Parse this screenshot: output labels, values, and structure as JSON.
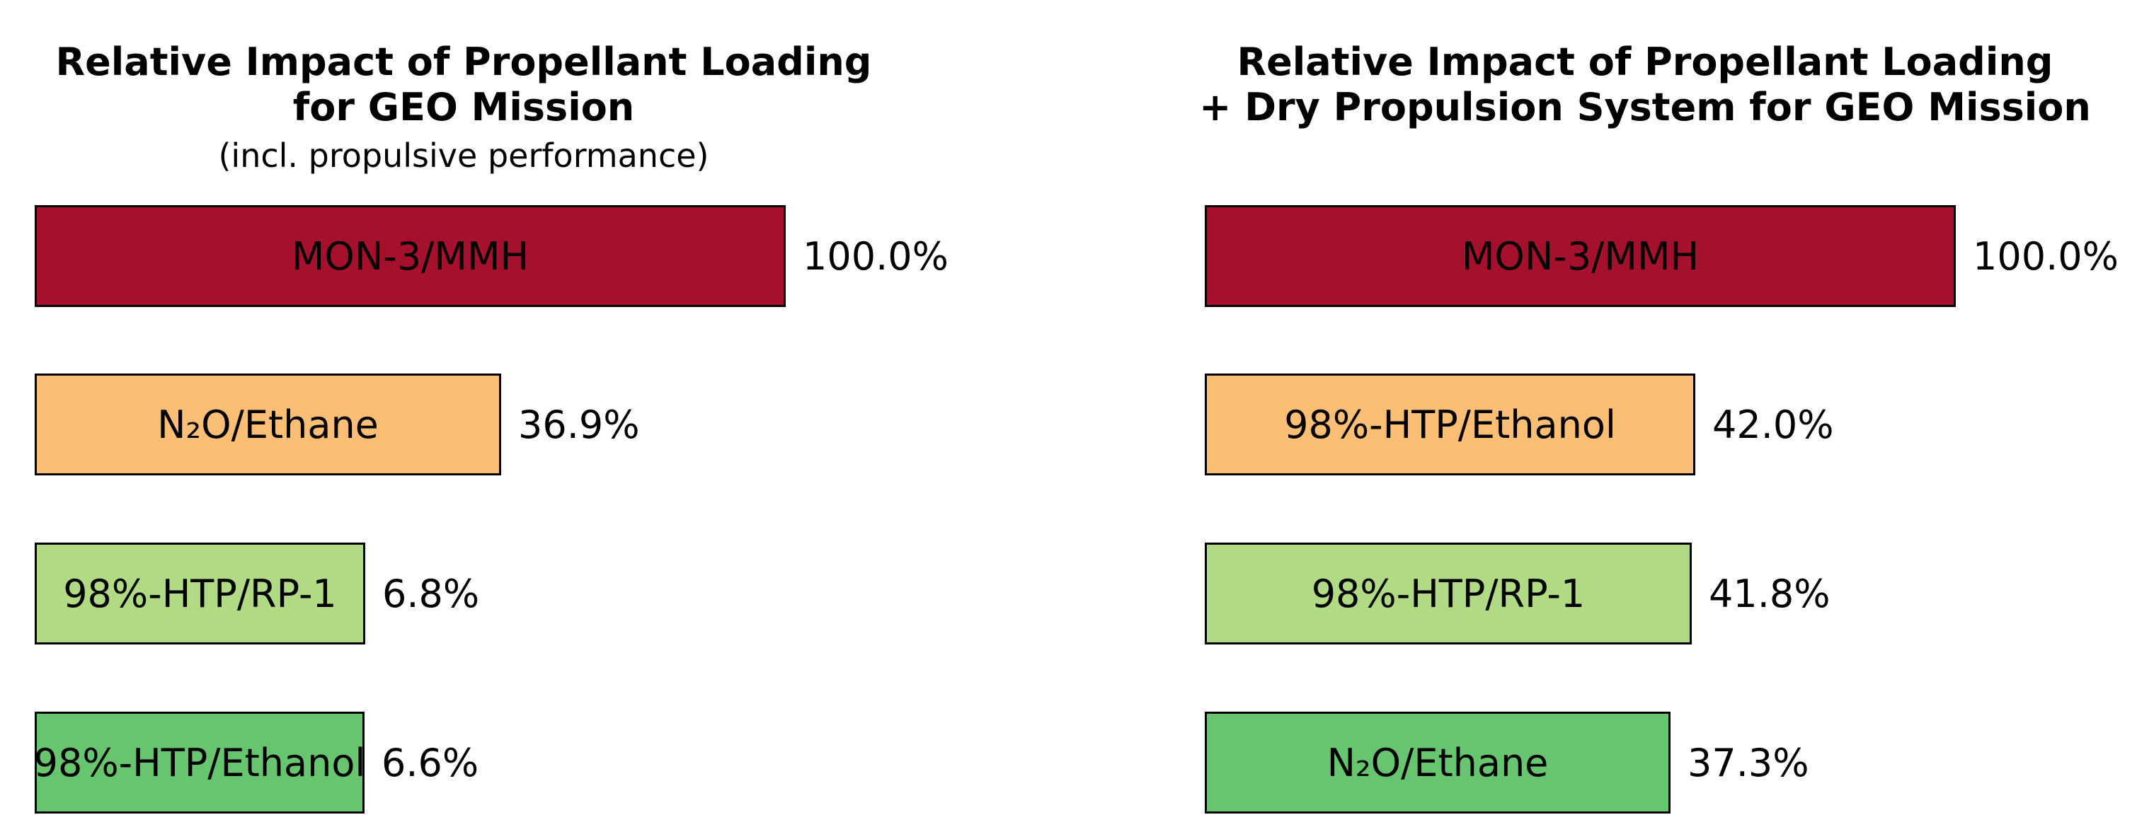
{
  "figure": {
    "background": "#ffffff",
    "text_color": "#000000",
    "bar_border_color": "#000000"
  },
  "chart_data": [
    {
      "type": "bar",
      "orientation": "horizontal",
      "title": "Relative Impact of Propellant Loading for GEO Mission",
      "title_lines": [
        "Relative Impact of Propellant Loading",
        "for GEO Mission"
      ],
      "subtitle": "(incl. propulsive performance)",
      "categories": [
        "MON-3/MMH",
        "N₂O/Ethane",
        "98%-HTP/RP-1",
        "98%-HTP/Ethanol"
      ],
      "values": [
        100.0,
        36.9,
        6.8,
        6.6
      ],
      "unit": "%",
      "value_labels": [
        "100.0%",
        "36.9%",
        "6.8%",
        "6.6%"
      ],
      "bar_colors": [
        "#A5112C",
        "#FBBE75",
        "#B0DA84",
        "#67C46F"
      ],
      "bar_width_pct": [
        100,
        62.1,
        44.0,
        43.9
      ],
      "grid": false,
      "axes_hidden": true,
      "category_label_position": "inside-bar",
      "value_label_position": "right-of-bar"
    },
    {
      "type": "bar",
      "orientation": "horizontal",
      "title": "Relative Impact of Propellant Loading + Dry Propulsion System for GEO Mission",
      "title_lines": [
        "Relative Impact of Propellant Loading",
        "+ Dry Propulsion System for GEO Mission"
      ],
      "subtitle": "",
      "categories": [
        "MON-3/MMH",
        "98%-HTP/Ethanol",
        "98%-HTP/RP-1",
        "N₂O/Ethane"
      ],
      "values": [
        100.0,
        42.0,
        41.8,
        37.3
      ],
      "unit": "%",
      "value_labels": [
        "100.0%",
        "42.0%",
        "41.8%",
        "37.3%"
      ],
      "bar_colors": [
        "#A5112C",
        "#FBBE75",
        "#B0DA84",
        "#67C46F"
      ],
      "bar_width_pct": [
        100,
        65.3,
        64.8,
        62.0
      ],
      "grid": false,
      "axes_hidden": true,
      "category_label_position": "inside-bar",
      "value_label_position": "right-of-bar"
    }
  ]
}
